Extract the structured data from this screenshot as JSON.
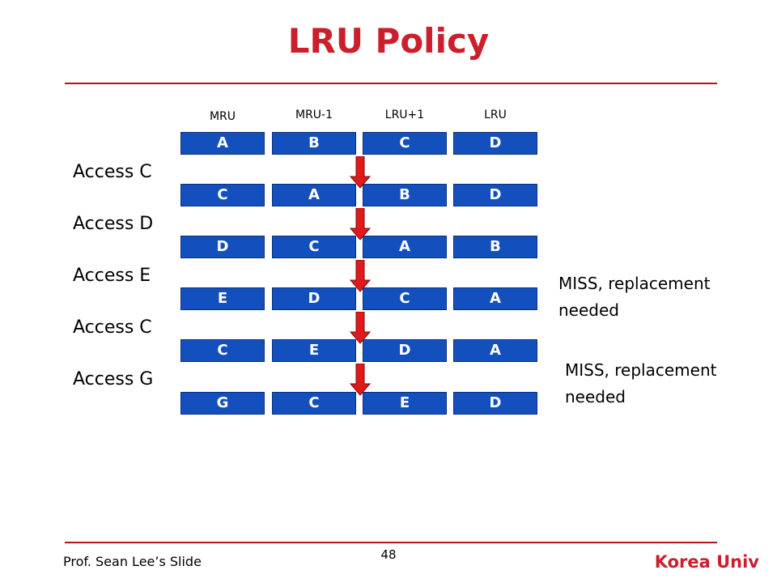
{
  "title": "LRU Policy",
  "columns": [
    "MRU",
    "MRU-1",
    "LRU+1",
    "LRU"
  ],
  "rows": [
    [
      "A",
      "B",
      "C",
      "D"
    ],
    [
      "C",
      "A",
      "B",
      "D"
    ],
    [
      "D",
      "C",
      "A",
      "B"
    ],
    [
      "E",
      "D",
      "C",
      "A"
    ],
    [
      "C",
      "E",
      "D",
      "A"
    ],
    [
      "G",
      "C",
      "E",
      "D"
    ]
  ],
  "accesses": [
    "Access C",
    "Access D",
    "Access E",
    "Access C",
    "Access G"
  ],
  "notes": [
    {
      "line1": "MISS, replacement",
      "line2": "needed"
    },
    {
      "line1": "MISS, replacement",
      "line2": "needed"
    }
  ],
  "footer": {
    "author": "Prof. Sean Lee’s Slide",
    "page": "48",
    "org": "Korea Univ"
  },
  "colors": {
    "title": "#cc1f2b",
    "cell": "#1450bd",
    "arrow": "#e01a1a",
    "rule": "#b01420"
  }
}
